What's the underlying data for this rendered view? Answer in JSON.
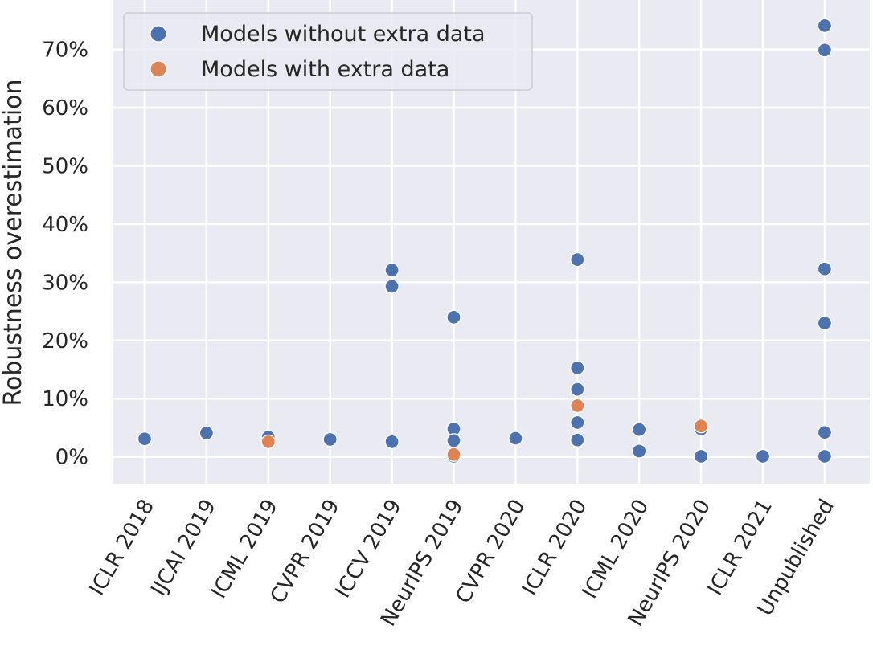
{
  "chart_data": {
    "type": "scatter",
    "title": "",
    "xlabel": "",
    "ylabel": "Robustness overestimation",
    "categories": [
      "ICLR 2018",
      "IJCAI 2019",
      "ICML 2019",
      "CVPR 2019",
      "ICCV 2019",
      "NeurIPS 2019",
      "CVPR 2020",
      "ICLR 2020",
      "ICML 2020",
      "NeurIPS 2020",
      "ICLR 2021",
      "Unpublished"
    ],
    "y_ticks": [
      "0%",
      "10%",
      "20%",
      "30%",
      "40%",
      "50%",
      "60%",
      "70%"
    ],
    "ylim": [
      -4.6,
      78.5
    ],
    "y_unit": "%",
    "grid": true,
    "legend_position": "top-left",
    "series": [
      {
        "name": "Models without extra data",
        "color": "#4c72b0",
        "points": [
          {
            "x": "ICLR 2018",
            "y": 3.1
          },
          {
            "x": "IJCAI 2019",
            "y": 4.1
          },
          {
            "x": "ICML 2019",
            "y": 3.4
          },
          {
            "x": "CVPR 2019",
            "y": 3.0
          },
          {
            "x": "ICCV 2019",
            "y": 32.1
          },
          {
            "x": "ICCV 2019",
            "y": 29.3
          },
          {
            "x": "ICCV 2019",
            "y": 2.6
          },
          {
            "x": "NeurIPS 2019",
            "y": 24.0
          },
          {
            "x": "NeurIPS 2019",
            "y": 4.8
          },
          {
            "x": "NeurIPS 2019",
            "y": 2.8
          },
          {
            "x": "NeurIPS 2019",
            "y": 0.1
          },
          {
            "x": "CVPR 2020",
            "y": 3.2
          },
          {
            "x": "ICLR 2020",
            "y": 33.9
          },
          {
            "x": "ICLR 2020",
            "y": 15.3
          },
          {
            "x": "ICLR 2020",
            "y": 11.6
          },
          {
            "x": "ICLR 2020",
            "y": 5.9
          },
          {
            "x": "ICLR 2020",
            "y": 2.9
          },
          {
            "x": "ICML 2020",
            "y": 4.7
          },
          {
            "x": "ICML 2020",
            "y": 1.0
          },
          {
            "x": "NeurIPS 2020",
            "y": 4.8
          },
          {
            "x": "NeurIPS 2020",
            "y": 0.1
          },
          {
            "x": "ICLR 2021",
            "y": 0.1
          },
          {
            "x": "Unpublished",
            "y": 74.1
          },
          {
            "x": "Unpublished",
            "y": 69.9
          },
          {
            "x": "Unpublished",
            "y": 32.3
          },
          {
            "x": "Unpublished",
            "y": 23.0
          },
          {
            "x": "Unpublished",
            "y": 4.2
          },
          {
            "x": "Unpublished",
            "y": 0.1
          }
        ]
      },
      {
        "name": "Models with extra data",
        "color": "#dd8452",
        "points": [
          {
            "x": "ICML 2019",
            "y": 2.6
          },
          {
            "x": "NeurIPS 2019",
            "y": 0.4
          },
          {
            "x": "ICLR 2020",
            "y": 8.8
          },
          {
            "x": "NeurIPS 2020",
            "y": 5.3
          }
        ]
      }
    ]
  },
  "style": {
    "plot_background": "#eaeaf2",
    "grid_color": "#ffffff",
    "text_color": "#262626"
  }
}
